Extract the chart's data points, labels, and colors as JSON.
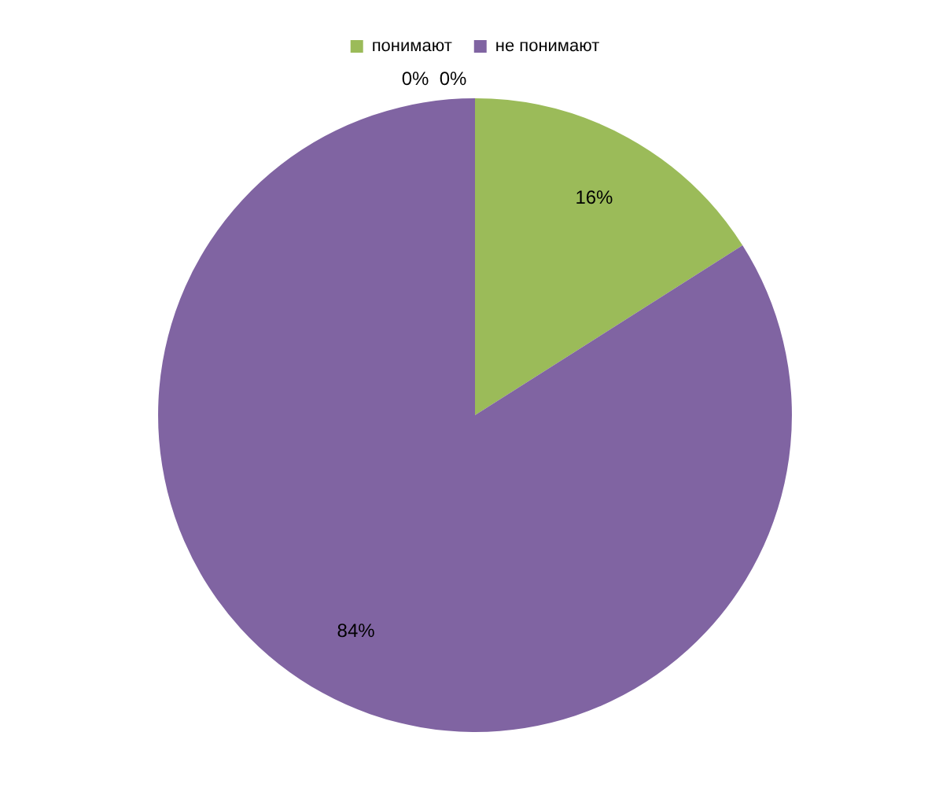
{
  "chart_data": {
    "type": "pie",
    "categories": [
      "понимают",
      "не понимают",
      null,
      null
    ],
    "values": [
      16,
      84,
      0,
      0
    ],
    "colors": [
      "#9bbb59",
      "#8064a2",
      "#4bacc6",
      "#f79646"
    ],
    "value_labels": [
      "16%",
      "84%",
      "0%",
      "0%"
    ],
    "legend": "top"
  }
}
